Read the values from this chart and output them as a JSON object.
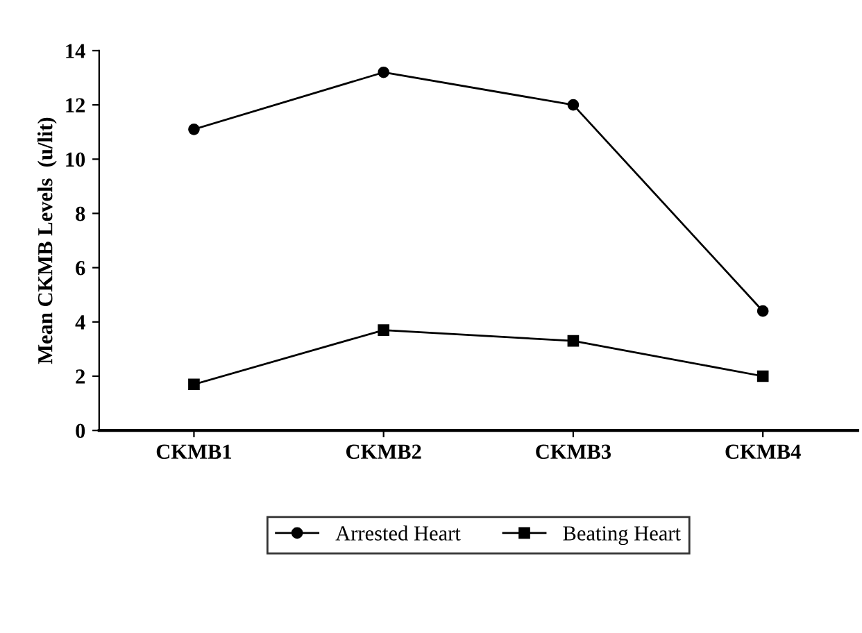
{
  "chart_data": {
    "type": "line",
    "ylabel": "Mean CKMB Levels  (u/lit)",
    "categories": [
      "CKMB1",
      "CKMB2",
      "CKMB3",
      "CKMB4"
    ],
    "series": [
      {
        "name": "Arrested Heart",
        "color": "#000000",
        "marker": "circle",
        "values": [
          11.1,
          13.2,
          12.0,
          4.4
        ]
      },
      {
        "name": "Beating Heart",
        "color": "#000000",
        "marker": "square",
        "values": [
          1.7,
          3.7,
          3.3,
          2.0
        ]
      }
    ],
    "ylim": [
      0,
      14
    ],
    "yticks": [
      0,
      2,
      4,
      6,
      8,
      10,
      12,
      14
    ],
    "grid": false,
    "legend": "bottom",
    "line_style": "solid"
  }
}
